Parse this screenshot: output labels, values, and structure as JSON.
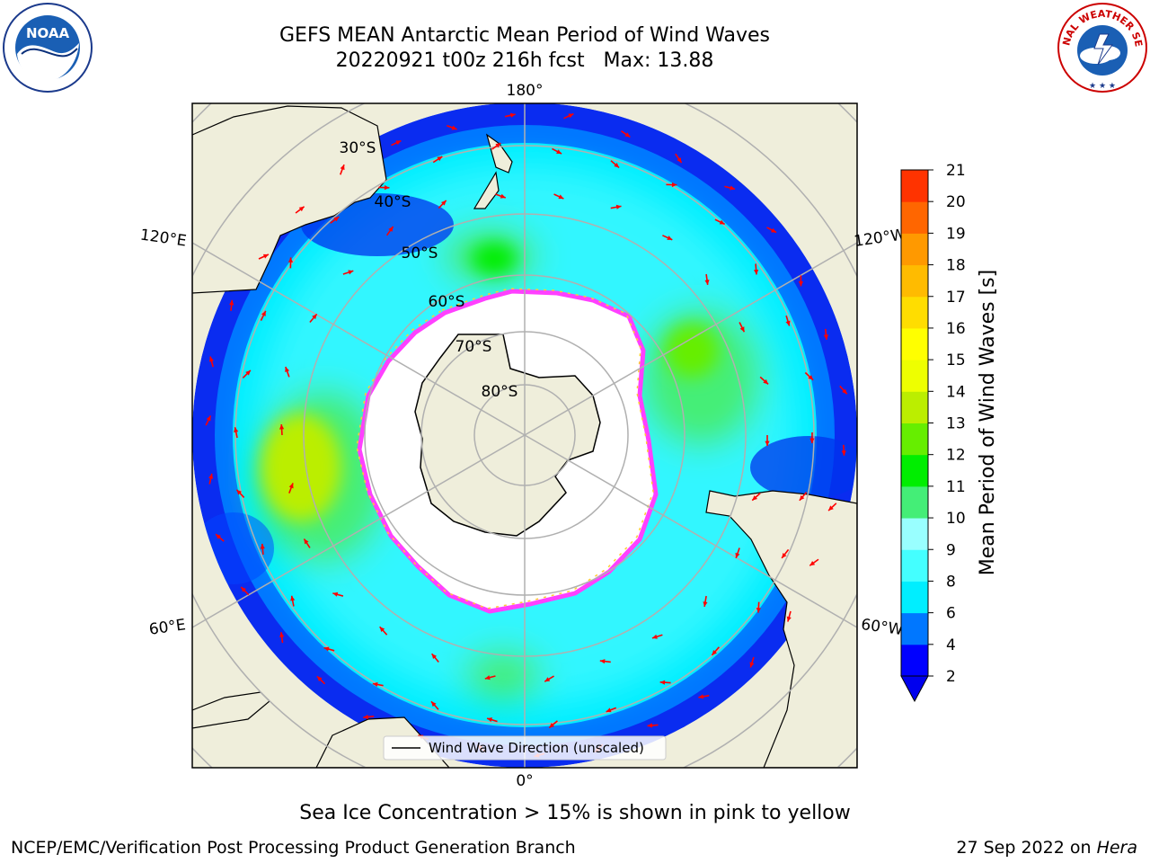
{
  "header": {
    "title_line1": "GEFS MEAN Antarctic Mean Period of Wind Waves",
    "title_line2": "20220921 t00z 216h fcst   Max: 13.88"
  },
  "logos": {
    "left": "noaa-logo",
    "left_text": "NOAA",
    "right": "national-weather-service-logo",
    "right_text": "NATIONAL WEATHER SERVICE"
  },
  "map": {
    "projection": "south-polar-stereographic",
    "lat_labels": [
      "30°S",
      "40°S",
      "50°S",
      "60°S",
      "70°S",
      "80°S"
    ],
    "lon_labels": {
      "top": "180°",
      "bottom": "0°",
      "left_upper": "120°E",
      "left_lower": "60°E",
      "right_upper": "120°W",
      "right_lower": "60°W"
    },
    "legend_label": "Wind Wave Direction (unscaled)",
    "colors": {
      "land": "#efeedb",
      "ice_interior": "#ffffff",
      "ice_edge": "#ff40ff",
      "arrow": "#ff0000",
      "gridline": "#b0b0b0"
    }
  },
  "colorbar": {
    "label": "Mean Period of Wind Waves [s]",
    "ticks": [
      "2",
      "4",
      "6",
      "8",
      "9",
      "10",
      "11",
      "12",
      "13",
      "14",
      "15",
      "16",
      "17",
      "18",
      "19",
      "20",
      "21"
    ],
    "colors": [
      "#0000ff",
      "#0077ff",
      "#00eeff",
      "#44ffff",
      "#99ffff",
      "#44ee77",
      "#00ee00",
      "#66ee00",
      "#bbee00",
      "#eeff00",
      "#ffff00",
      "#ffdd00",
      "#ffbb00",
      "#ff9900",
      "#ff6600",
      "#ff3300",
      "#ff0000"
    ],
    "extend_color": "#0000ee"
  },
  "subcaption": "Sea Ice Concentration > 15% is shown in pink to yellow",
  "footer": {
    "left": "NCEP/EMC/Verification Post Processing Product Generation Branch",
    "right_date": "27 Sep 2022 on ",
    "right_host": "Hera"
  }
}
